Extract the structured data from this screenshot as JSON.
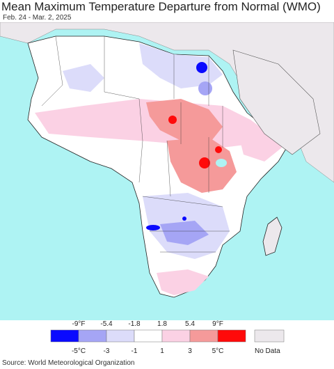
{
  "title": "Mean Maximum Temperature Departure from Normal (WMO)",
  "date_range": "Feb. 24 - Mar. 2, 2025",
  "source": "Source: World Meteorological Organization",
  "legend": {
    "bins": [
      {
        "color": "#0a0aff"
      },
      {
        "color": "#a5a5f5"
      },
      {
        "color": "#dcdcfa"
      },
      {
        "color": "#ffffff"
      },
      {
        "color": "#fbd1e4"
      },
      {
        "color": "#f59a9a"
      },
      {
        "color": "#ff0a0a"
      }
    ],
    "fahrenheit_labels": [
      "-9°F",
      "-5.4",
      "-1.8",
      "1.8",
      "5.4",
      "9°F"
    ],
    "celsius_labels": [
      "-5°C",
      "-3",
      "-1",
      "1",
      "3",
      "5°C"
    ],
    "no_data_label": "No Data",
    "no_data_color": "#ece8ec"
  },
  "map": {
    "ocean_color": "#aef3f3",
    "land_nodata_color": "#ece8ec"
  }
}
